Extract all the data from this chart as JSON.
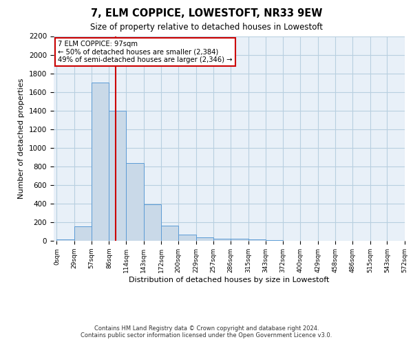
{
  "title": "7, ELM COPPICE, LOWESTOFT, NR33 9EW",
  "subtitle": "Size of property relative to detached houses in Lowestoft",
  "xlabel": "Distribution of detached houses by size in Lowestoft",
  "ylabel": "Number of detached properties",
  "bar_edges": [
    0,
    29,
    57,
    86,
    114,
    143,
    172,
    200,
    229,
    257,
    286,
    315,
    343,
    372,
    400,
    429,
    458,
    486,
    515,
    543,
    572
  ],
  "bar_heights": [
    15,
    155,
    1700,
    1400,
    835,
    390,
    165,
    65,
    35,
    22,
    22,
    18,
    10,
    0,
    0,
    0,
    0,
    0,
    0,
    0
  ],
  "bar_color": "#c9d9e8",
  "bar_edgecolor": "#5b9bd5",
  "redline_x": 97,
  "annotation_title": "7 ELM COPPICE: 97sqm",
  "annotation_line1": "← 50% of detached houses are smaller (2,384)",
  "annotation_line2": "49% of semi-detached houses are larger (2,346) →",
  "annotation_box_color": "#ffffff",
  "annotation_box_edgecolor": "#cc0000",
  "redline_color": "#cc0000",
  "tick_labels": [
    "0sqm",
    "29sqm",
    "57sqm",
    "86sqm",
    "114sqm",
    "143sqm",
    "172sqm",
    "200sqm",
    "229sqm",
    "257sqm",
    "286sqm",
    "315sqm",
    "343sqm",
    "372sqm",
    "400sqm",
    "429sqm",
    "458sqm",
    "486sqm",
    "515sqm",
    "543sqm",
    "572sqm"
  ],
  "ylim": [
    0,
    2200
  ],
  "yticks": [
    0,
    200,
    400,
    600,
    800,
    1000,
    1200,
    1400,
    1600,
    1800,
    2000,
    2200
  ],
  "grid_color": "#b8cfe0",
  "bg_color": "#e8f0f8",
  "footnote1": "Contains HM Land Registry data © Crown copyright and database right 2024.",
  "footnote2": "Contains public sector information licensed under the Open Government Licence v3.0."
}
